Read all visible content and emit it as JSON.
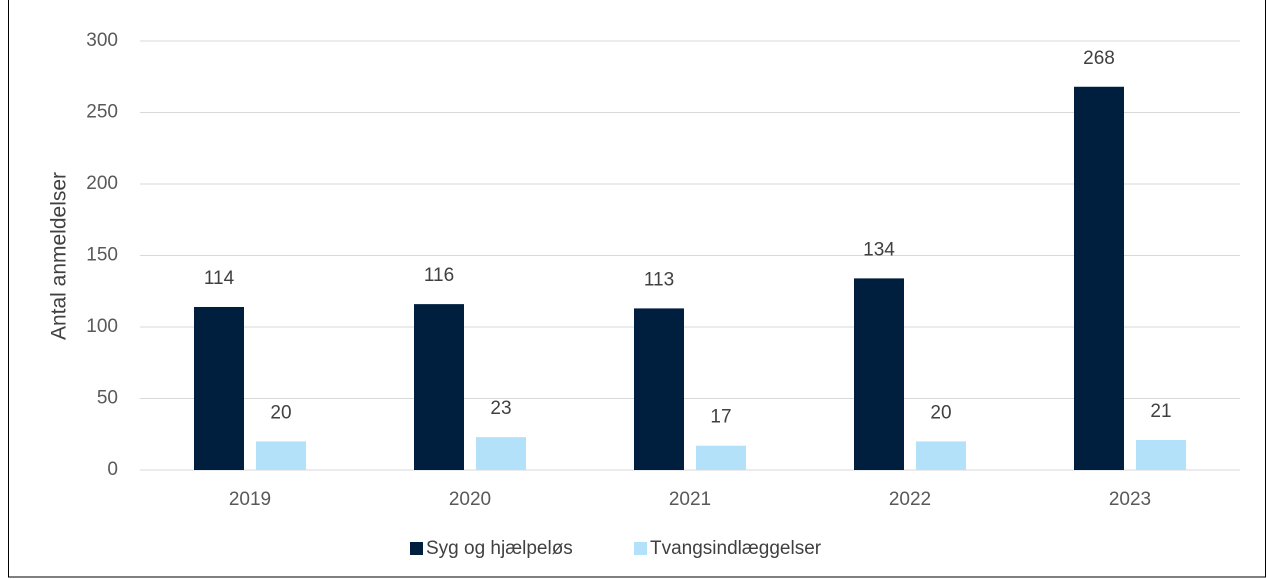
{
  "chart_data": {
    "type": "bar",
    "ylabel": "Antal anmeldelser",
    "categories": [
      "2019",
      "2020",
      "2021",
      "2022",
      "2023"
    ],
    "series": [
      {
        "name": "Syg og hjælpeløs",
        "color": "#001f3f",
        "values": [
          114,
          116,
          113,
          134,
          268
        ]
      },
      {
        "name": "Tvangsindlæggelser",
        "color": "#b4e1fa",
        "values": [
          20,
          23,
          17,
          20,
          21
        ]
      }
    ],
    "ylim": [
      0,
      300
    ],
    "yticks": [
      0,
      50,
      100,
      150,
      200,
      250,
      300
    ],
    "grid": true,
    "legend": "bottom"
  }
}
